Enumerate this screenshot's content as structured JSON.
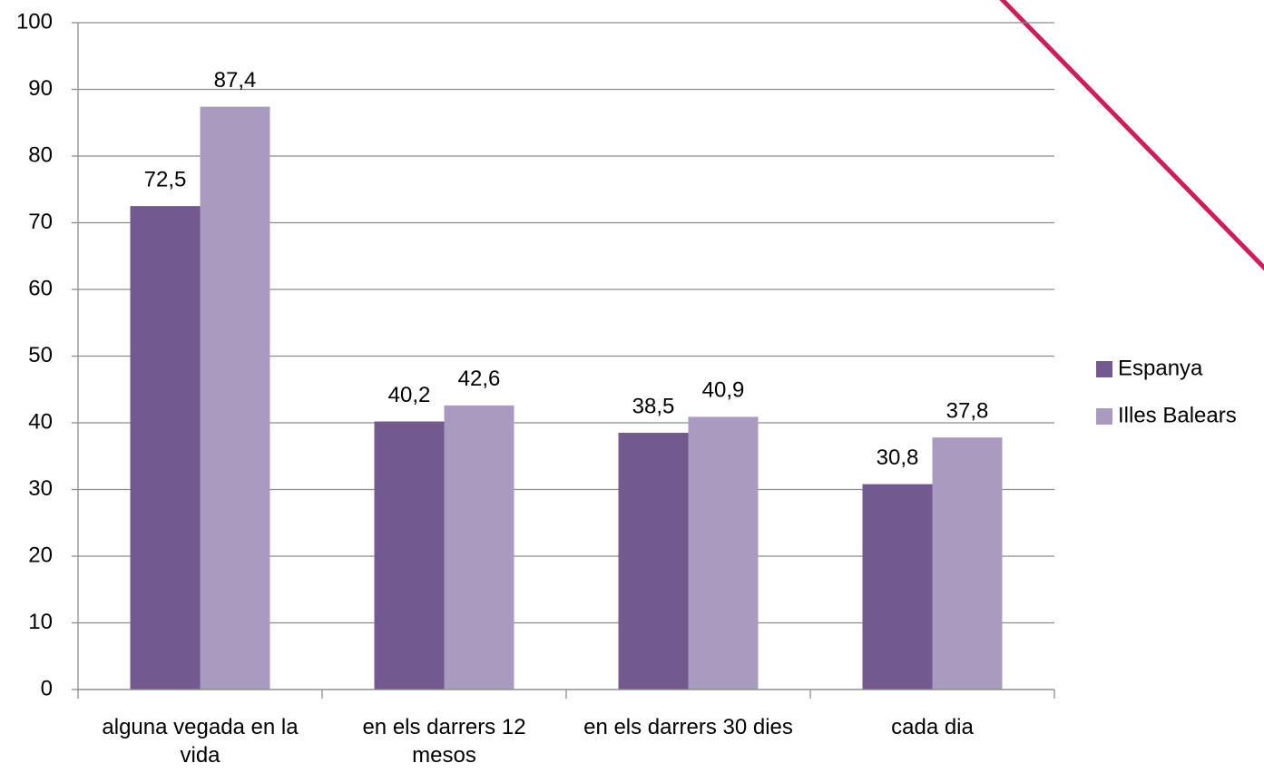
{
  "chart_data": {
    "type": "bar",
    "categories": [
      "alguna vegada en la vida",
      "en els darrers 12 mesos",
      "en els darrers 30 dies",
      "cada dia"
    ],
    "series": [
      {
        "name": "Espanya",
        "color": "#725a8f",
        "values": [
          72.5,
          40.2,
          38.5,
          30.8
        ],
        "value_labels": [
          "72,5",
          "40,2",
          "38,5",
          "30,8"
        ]
      },
      {
        "name": "Illes Balears",
        "color": "#a99bc0",
        "values": [
          87.4,
          42.6,
          40.9,
          37.8
        ],
        "value_labels": [
          "87,4",
          "42,6",
          "40,9",
          "37,8"
        ]
      }
    ],
    "ylim": [
      0,
      100
    ],
    "yticks": [
      0,
      10,
      20,
      30,
      40,
      50,
      60,
      70,
      80,
      90,
      100
    ],
    "grid": true,
    "legend": "right"
  }
}
